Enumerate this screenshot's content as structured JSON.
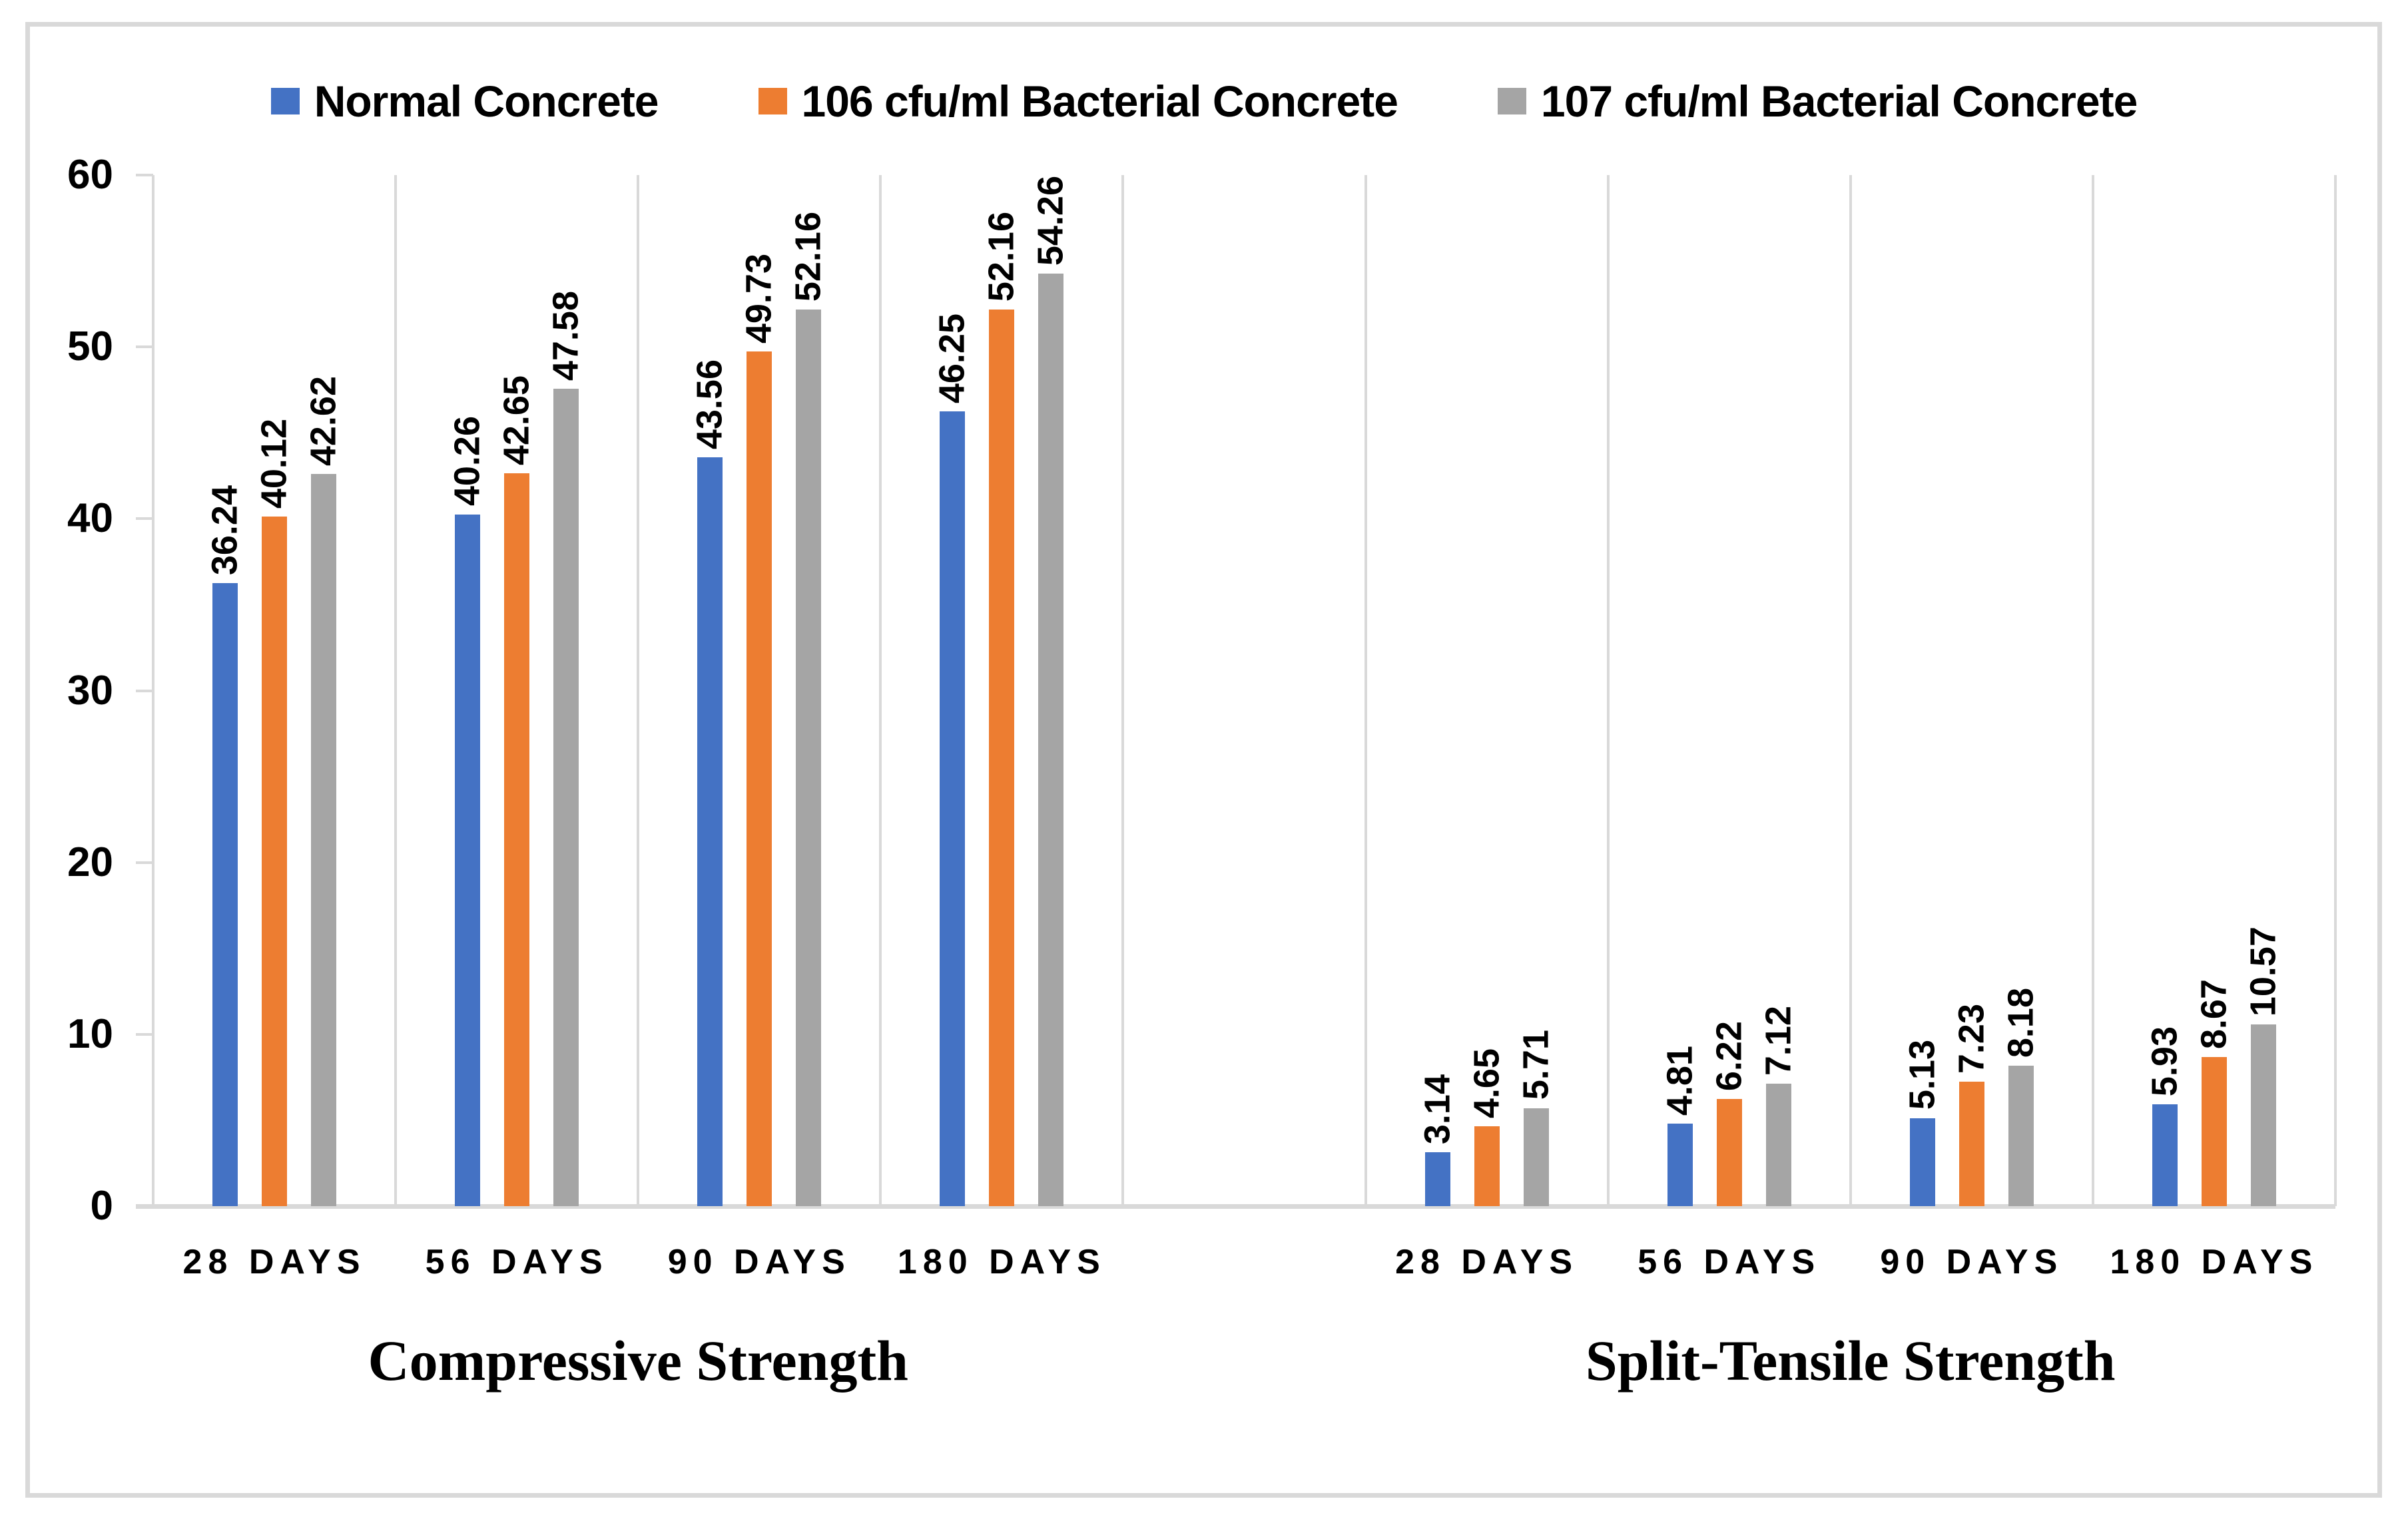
{
  "legend": {
    "items": [
      {
        "label": "Normal Concrete",
        "color": "#4472C4"
      },
      {
        "label": "106 cfu/ml Bacterial Concrete",
        "color": "#ED7D31"
      },
      {
        "label": "107 cfu/ml Bacterial Concrete",
        "color": "#A5A5A5"
      }
    ]
  },
  "y_axis": {
    "min": 0,
    "max": 60,
    "step": 10,
    "tick_labels": [
      "0",
      "10",
      "20",
      "30",
      "40",
      "50",
      "60"
    ]
  },
  "x_axis": {
    "category_labels": [
      "28 DAYS",
      "56 DAYS",
      "90 DAYS",
      "180 DAYS"
    ],
    "group_titles": [
      "Compressive Strength",
      "Split-Tensile Strength"
    ]
  },
  "colors": {
    "series_blue": "#4472C4",
    "series_orange": "#ED7D31",
    "series_gray": "#A5A5A5",
    "axis_lines": "#D9D9D9",
    "frame_border": "#D9D9D9",
    "text": "#000000"
  },
  "chart_data": {
    "type": "bar",
    "title": "",
    "xlabel": "",
    "ylabel": "",
    "ylim": [
      0,
      60
    ],
    "ytick_step": 10,
    "grid": "vertical category separators only",
    "legend_position": "top-center",
    "data_labels": "rotated 90deg, outside end, two decimals",
    "groups": [
      {
        "label": "Compressive Strength",
        "categories": [
          "28 DAYS",
          "56 DAYS",
          "90 DAYS",
          "180 DAYS"
        ],
        "series": [
          {
            "name": "Normal Concrete",
            "color": "#4472C4",
            "values": [
              36.24,
              40.26,
              43.56,
              46.25
            ]
          },
          {
            "name": "106 cfu/ml Bacterial Concrete",
            "color": "#ED7D31",
            "values": [
              40.12,
              42.65,
              49.73,
              52.16
            ]
          },
          {
            "name": "107 cfu/ml Bacterial Concrete",
            "color": "#A5A5A5",
            "values": [
              42.62,
              47.58,
              52.16,
              54.26
            ]
          }
        ]
      },
      {
        "label": "Split-Tensile Strength",
        "categories": [
          "28 DAYS",
          "56 DAYS",
          "90 DAYS",
          "180 DAYS"
        ],
        "series": [
          {
            "name": "Normal Concrete",
            "color": "#4472C4",
            "values": [
              3.14,
              4.81,
              5.13,
              5.93
            ]
          },
          {
            "name": "106 cfu/ml Bacterial Concrete",
            "color": "#ED7D31",
            "values": [
              4.65,
              6.22,
              7.23,
              8.67
            ]
          },
          {
            "name": "107 cfu/ml Bacterial Concrete",
            "color": "#A5A5A5",
            "values": [
              5.71,
              7.12,
              8.18,
              10.57
            ]
          }
        ]
      }
    ]
  }
}
